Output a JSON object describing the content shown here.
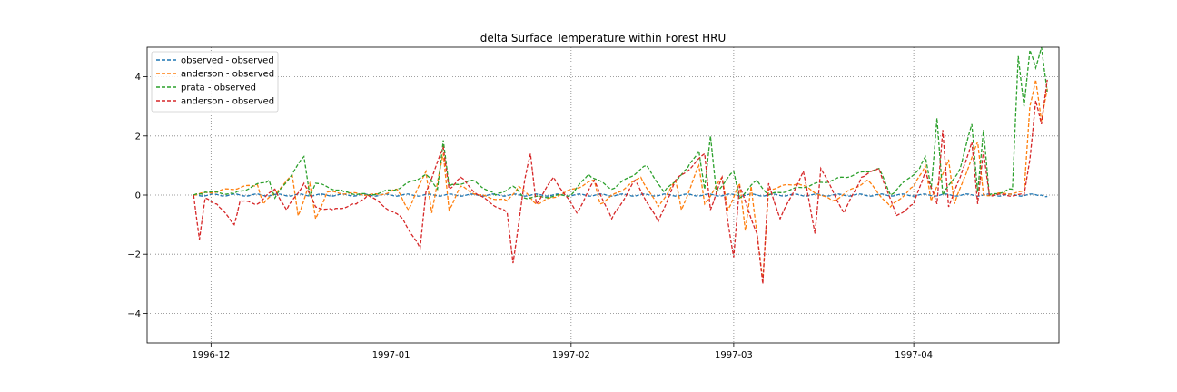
{
  "chart_data": {
    "type": "line",
    "title": "delta Surface Temperature within Forest HRU",
    "xlabel": "",
    "ylabel": "",
    "xlim": [
      "1996-11-20",
      "1997-04-26"
    ],
    "ylim": [
      -5,
      5
    ],
    "x_ticks": [
      {
        "date": "1996-12-01",
        "label": "1996-12"
      },
      {
        "date": "1997-01-01",
        "label": "1997-01"
      },
      {
        "date": "1997-02-01",
        "label": "1997-02"
      },
      {
        "date": "1997-03-01",
        "label": "1997-03"
      },
      {
        "date": "1997-04-01",
        "label": "1997-04"
      }
    ],
    "y_ticks": [
      -4,
      -2,
      0,
      2,
      4
    ],
    "y_tick_labels": [
      "−4",
      "−2",
      "0",
      "2",
      "4"
    ],
    "grid": true,
    "legend_position": "upper-left",
    "series": [
      {
        "name": "observed - observed",
        "color": "#1f77b4",
        "points": [
          [
            "1996-11-28",
            0.0
          ],
          [
            "1997-04-23",
            0.0
          ],
          [
            "1997-04-24",
            -0.05
          ]
        ]
      },
      {
        "name": "anderson - observed",
        "color": "#ff7f0e",
        "points": [
          [
            "1996-11-28",
            0.0
          ],
          [
            "1996-12-09",
            0.35
          ],
          [
            "1996-12-10",
            -0.3
          ],
          [
            "1996-12-15",
            0.65
          ],
          [
            "1996-12-16",
            -0.7
          ],
          [
            "1996-12-18",
            0.4
          ],
          [
            "1996-12-19",
            -0.8
          ],
          [
            "1996-12-21",
            0.1
          ],
          [
            "1996-12-30",
            0.0
          ],
          [
            "1997-01-02",
            0.2
          ],
          [
            "1997-01-04",
            -0.5
          ],
          [
            "1997-01-07",
            0.8
          ],
          [
            "1997-01-08",
            -0.6
          ],
          [
            "1997-01-10",
            1.4
          ],
          [
            "1997-01-11",
            -0.5
          ],
          [
            "1997-01-13",
            0.3
          ],
          [
            "1997-01-16",
            0.0
          ],
          [
            "1997-01-21",
            -0.2
          ],
          [
            "1997-01-23",
            0.3
          ],
          [
            "1997-01-26",
            -0.3
          ],
          [
            "1997-01-30",
            0.0
          ],
          [
            "1997-02-05",
            0.5
          ],
          [
            "1997-02-06",
            -0.3
          ],
          [
            "1997-02-13",
            0.6
          ],
          [
            "1997-02-16",
            -0.4
          ],
          [
            "1997-02-19",
            0.5
          ],
          [
            "1997-02-20",
            -0.5
          ],
          [
            "1997-02-23",
            1.0
          ],
          [
            "1997-02-24",
            -0.3
          ],
          [
            "1997-02-27",
            0.6
          ],
          [
            "1997-02-28",
            -0.5
          ],
          [
            "1997-03-02",
            0.4
          ],
          [
            "1997-03-03",
            -1.2
          ],
          [
            "1997-03-04",
            0.3
          ],
          [
            "1997-03-06",
            -2.9
          ],
          [
            "1997-03-07",
            0.2
          ],
          [
            "1997-03-12",
            0.4
          ],
          [
            "1997-03-18",
            -0.2
          ],
          [
            "1997-03-24",
            0.5
          ],
          [
            "1997-03-28",
            -0.4
          ],
          [
            "1997-04-01",
            0.3
          ],
          [
            "1997-04-03",
            1.0
          ],
          [
            "1997-04-04",
            -0.2
          ],
          [
            "1997-04-07",
            1.2
          ],
          [
            "1997-04-08",
            -0.3
          ],
          [
            "1997-04-12",
            1.8
          ],
          [
            "1997-04-13",
            0.0
          ],
          [
            "1997-04-20",
            0.1
          ],
          [
            "1997-04-21",
            3.0
          ],
          [
            "1997-04-22",
            3.9
          ],
          [
            "1997-04-23",
            2.5
          ],
          [
            "1997-04-24",
            3.6
          ]
        ]
      },
      {
        "name": "prata - observed",
        "color": "#2ca02c",
        "points": [
          [
            "1996-11-28",
            0.0
          ],
          [
            "1996-11-30",
            0.1
          ],
          [
            "1996-12-05",
            0.05
          ],
          [
            "1996-12-11",
            0.5
          ],
          [
            "1996-12-12",
            -0.1
          ],
          [
            "1996-12-17",
            1.3
          ],
          [
            "1996-12-18",
            0.0
          ],
          [
            "1996-12-19",
            0.4
          ],
          [
            "1996-12-24",
            0.1
          ],
          [
            "1996-12-28",
            0.0
          ],
          [
            "1997-01-02",
            0.2
          ],
          [
            "1997-01-07",
            0.7
          ],
          [
            "1997-01-09",
            0.2
          ],
          [
            "1997-01-10",
            1.85
          ],
          [
            "1997-01-11",
            0.3
          ],
          [
            "1997-01-15",
            0.5
          ],
          [
            "1997-01-19",
            0.0
          ],
          [
            "1997-01-22",
            0.3
          ],
          [
            "1997-01-24",
            -0.1
          ],
          [
            "1997-02-01",
            0.0
          ],
          [
            "1997-02-04",
            0.7
          ],
          [
            "1997-02-08",
            0.2
          ],
          [
            "1997-02-14",
            1.0
          ],
          [
            "1997-02-17",
            0.1
          ],
          [
            "1997-02-21",
            0.9
          ],
          [
            "1997-02-23",
            1.5
          ],
          [
            "1997-02-24",
            0.2
          ],
          [
            "1997-02-25",
            2.0
          ],
          [
            "1997-02-26",
            0.1
          ],
          [
            "1997-03-01",
            0.8
          ],
          [
            "1997-03-02",
            -0.1
          ],
          [
            "1997-03-05",
            0.5
          ],
          [
            "1997-03-07",
            0.0
          ],
          [
            "1997-03-20",
            0.6
          ],
          [
            "1997-03-26",
            0.9
          ],
          [
            "1997-03-28",
            0.0
          ],
          [
            "1997-04-02",
            0.9
          ],
          [
            "1997-04-03",
            1.3
          ],
          [
            "1997-04-04",
            0.2
          ],
          [
            "1997-04-05",
            2.6
          ],
          [
            "1997-04-06",
            0.0
          ],
          [
            "1997-04-09",
            0.9
          ],
          [
            "1997-04-11",
            2.4
          ],
          [
            "1997-04-12",
            0.1
          ],
          [
            "1997-04-13",
            2.2
          ],
          [
            "1997-04-14",
            0.0
          ],
          [
            "1997-04-18",
            0.2
          ],
          [
            "1997-04-19",
            4.7
          ],
          [
            "1997-04-20",
            3.0
          ],
          [
            "1997-04-21",
            4.9
          ],
          [
            "1997-04-22",
            4.3
          ],
          [
            "1997-04-23",
            5.0
          ],
          [
            "1997-04-24",
            3.5
          ]
        ]
      },
      {
        "name": "anderson - observed",
        "color": "#d62728",
        "points": [
          [
            "1996-11-28",
            0.0
          ],
          [
            "1996-11-29",
            -1.5
          ],
          [
            "1996-11-30",
            -0.1
          ],
          [
            "1996-12-02",
            -0.3
          ],
          [
            "1996-12-05",
            -1.0
          ],
          [
            "1996-12-06",
            -0.2
          ],
          [
            "1996-12-09",
            -0.3
          ],
          [
            "1996-12-12",
            0.2
          ],
          [
            "1996-12-14",
            -0.5
          ],
          [
            "1996-12-17",
            0.4
          ],
          [
            "1996-12-19",
            -0.4
          ],
          [
            "1996-12-22",
            -0.5
          ],
          [
            "1996-12-26",
            -0.3
          ],
          [
            "1996-12-28",
            0.0
          ],
          [
            "1997-01-03",
            -0.8
          ],
          [
            "1997-01-06",
            -1.8
          ],
          [
            "1997-01-07",
            0.1
          ],
          [
            "1997-01-10",
            1.6
          ],
          [
            "1997-01-11",
            0.2
          ],
          [
            "1997-01-13",
            0.6
          ],
          [
            "1997-01-16",
            0.0
          ],
          [
            "1997-01-21",
            -0.6
          ],
          [
            "1997-01-22",
            -2.3
          ],
          [
            "1997-01-24",
            0.5
          ],
          [
            "1997-01-25",
            1.4
          ],
          [
            "1997-01-26",
            -0.3
          ],
          [
            "1997-01-29",
            0.6
          ],
          [
            "1997-01-31",
            0.0
          ],
          [
            "1997-02-02",
            -0.6
          ],
          [
            "1997-02-05",
            0.5
          ],
          [
            "1997-02-08",
            -0.8
          ],
          [
            "1997-02-12",
            0.5
          ],
          [
            "1997-02-16",
            -0.9
          ],
          [
            "1997-02-19",
            0.5
          ],
          [
            "1997-02-22",
            1.0
          ],
          [
            "1997-02-24",
            1.4
          ],
          [
            "1997-02-25",
            -0.5
          ],
          [
            "1997-02-27",
            0.6
          ],
          [
            "1997-02-28",
            -0.9
          ],
          [
            "1997-03-01",
            -2.1
          ],
          [
            "1997-03-02",
            0.3
          ],
          [
            "1997-03-05",
            -1.3
          ],
          [
            "1997-03-06",
            -3.0
          ],
          [
            "1997-03-07",
            0.4
          ],
          [
            "1997-03-09",
            -0.8
          ],
          [
            "1997-03-13",
            0.8
          ],
          [
            "1997-03-15",
            -1.3
          ],
          [
            "1997-03-16",
            0.9
          ],
          [
            "1997-03-20",
            -0.6
          ],
          [
            "1997-03-23",
            0.6
          ],
          [
            "1997-03-26",
            0.9
          ],
          [
            "1997-03-29",
            -0.7
          ],
          [
            "1997-04-01",
            -0.3
          ],
          [
            "1997-04-03",
            0.8
          ],
          [
            "1997-04-05",
            -0.3
          ],
          [
            "1997-04-06",
            2.2
          ],
          [
            "1997-04-07",
            -0.4
          ],
          [
            "1997-04-09",
            0.6
          ],
          [
            "1997-04-11",
            1.8
          ],
          [
            "1997-04-12",
            -0.3
          ],
          [
            "1997-04-13",
            1.5
          ],
          [
            "1997-04-14",
            0.0
          ],
          [
            "1997-04-20",
            0.0
          ],
          [
            "1997-04-21",
            1.2
          ],
          [
            "1997-04-22",
            3.2
          ],
          [
            "1997-04-23",
            2.4
          ],
          [
            "1997-04-24",
            3.9
          ]
        ]
      }
    ]
  }
}
